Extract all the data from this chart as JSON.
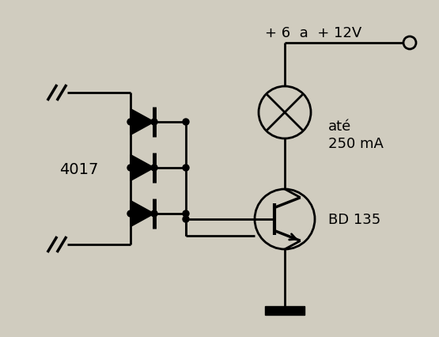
{
  "bg_color": "#d0ccbf",
  "line_color": "#000000",
  "label_4017": "4017",
  "label_bd135": "BD 135",
  "label_ate": "até",
  "label_250ma": "250 mA",
  "label_voltage": "+ 6  a  + 12V",
  "figsize": [
    5.55,
    4.27
  ],
  "dpi": 100
}
